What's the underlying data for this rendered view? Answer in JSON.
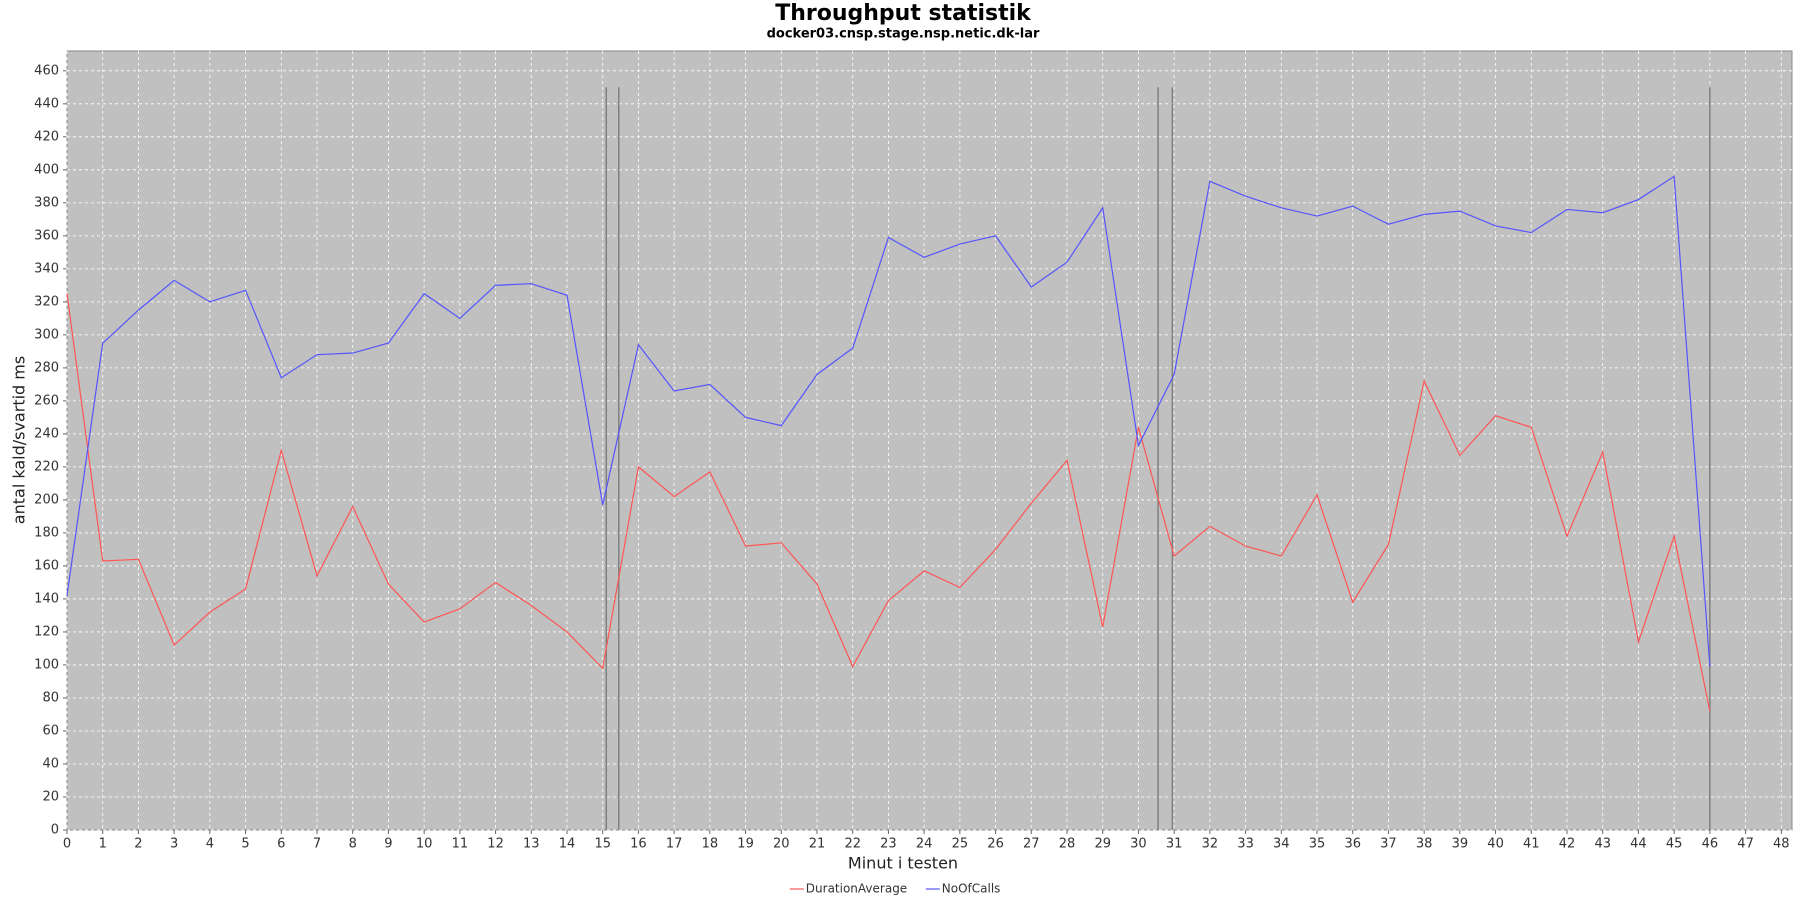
{
  "chart_data": {
    "type": "line",
    "title": "Throughput statistik",
    "subtitle": "docker03.cnsp.stage.nsp.netic.dk-lar",
    "x_label": "Minut i testen",
    "y_label": "antal kald/svartid ms",
    "x": [
      0,
      1,
      2,
      3,
      4,
      5,
      6,
      7,
      8,
      9,
      10,
      11,
      12,
      13,
      14,
      15,
      16,
      17,
      18,
      19,
      20,
      21,
      22,
      23,
      24,
      25,
      26,
      27,
      28,
      29,
      30,
      31,
      32,
      33,
      34,
      35,
      36,
      37,
      38,
      39,
      40,
      41,
      42,
      43,
      44,
      45,
      46
    ],
    "series": [
      {
        "name": "DurationAverage",
        "color": "#ff5555",
        "values": [
          325,
          163,
          164,
          112,
          132,
          146,
          230,
          154,
          196,
          149,
          126,
          134,
          150,
          136,
          120,
          98,
          220,
          202,
          217,
          172,
          174,
          149,
          99,
          139,
          157,
          147,
          170,
          198,
          224,
          123,
          244,
          166,
          184,
          172,
          166,
          203,
          138,
          173,
          272,
          227,
          251,
          244,
          178,
          229,
          114,
          178,
          72
        ]
      },
      {
        "name": "NoOfCalls",
        "color": "#5555ff",
        "values": [
          142,
          295,
          315,
          333,
          320,
          327,
          274,
          288,
          289,
          295,
          325,
          310,
          330,
          331,
          324,
          197,
          294,
          266,
          270,
          250,
          245,
          276,
          292,
          359,
          347,
          355,
          360,
          329,
          344,
          377,
          233,
          276,
          393,
          384,
          377,
          372,
          378,
          367,
          373,
          375,
          366,
          362,
          376,
          374,
          382,
          396,
          99
        ]
      }
    ],
    "vlines": {
      "x": [
        15.1,
        15.45,
        30.55,
        30.95,
        46
      ],
      "top": 450,
      "color": "#808080"
    },
    "xlim": [
      0,
      48.3
    ],
    "ylim": [
      0,
      472
    ],
    "xticks": [
      0,
      1,
      2,
      3,
      4,
      5,
      6,
      7,
      8,
      9,
      10,
      11,
      12,
      13,
      14,
      15,
      16,
      17,
      18,
      19,
      20,
      21,
      22,
      23,
      24,
      25,
      26,
      27,
      28,
      29,
      30,
      31,
      32,
      33,
      34,
      35,
      36,
      37,
      38,
      39,
      40,
      41,
      42,
      43,
      44,
      45,
      46,
      47,
      48
    ],
    "yticks": [
      0,
      20,
      40,
      60,
      80,
      100,
      120,
      140,
      160,
      180,
      200,
      220,
      240,
      260,
      280,
      300,
      320,
      340,
      360,
      380,
      400,
      420,
      440,
      460
    ],
    "grid": true,
    "legend": "bottom"
  }
}
